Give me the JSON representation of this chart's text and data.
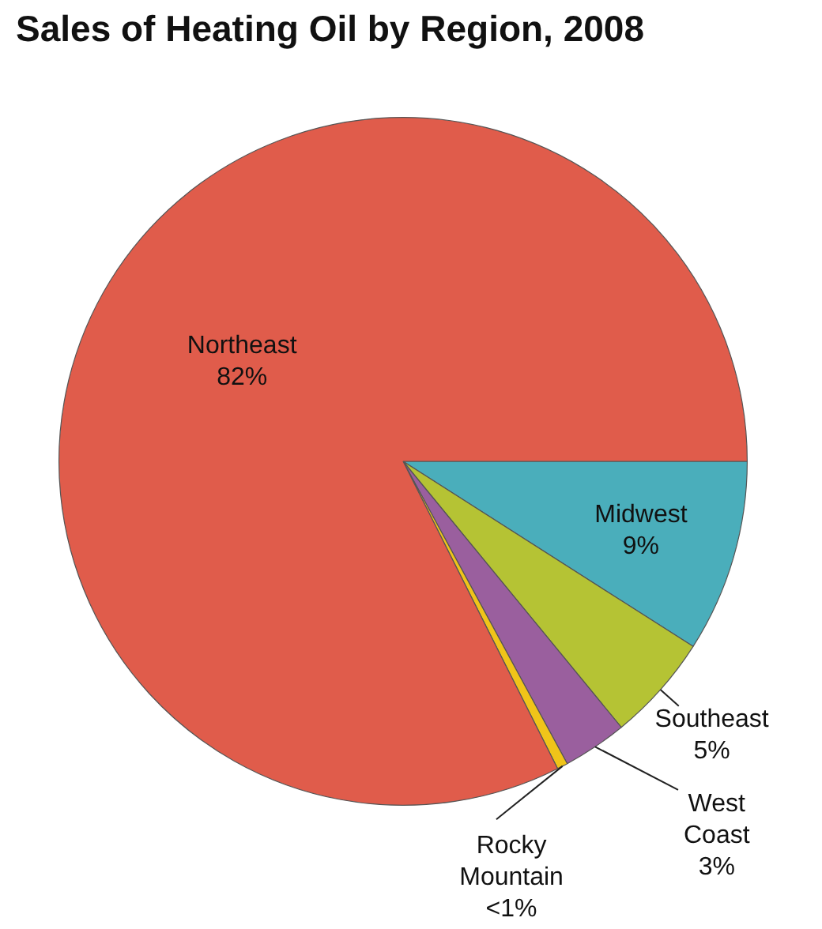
{
  "chart_data": {
    "type": "pie",
    "title": "Sales of Heating Oil by Region, 2008",
    "categories": [
      "Midwest",
      "Southeast",
      "West Coast",
      "Rocky Mountain",
      "Northeast"
    ],
    "values": [
      9,
      5,
      3,
      0.5,
      82
    ],
    "value_labels": [
      "9%",
      "5%",
      "3%",
      "<1%",
      "82%"
    ],
    "colors": [
      "#4aaebb",
      "#b5c334",
      "#9a5f9e",
      "#f0c419",
      "#e05c4b"
    ],
    "legend": false
  }
}
